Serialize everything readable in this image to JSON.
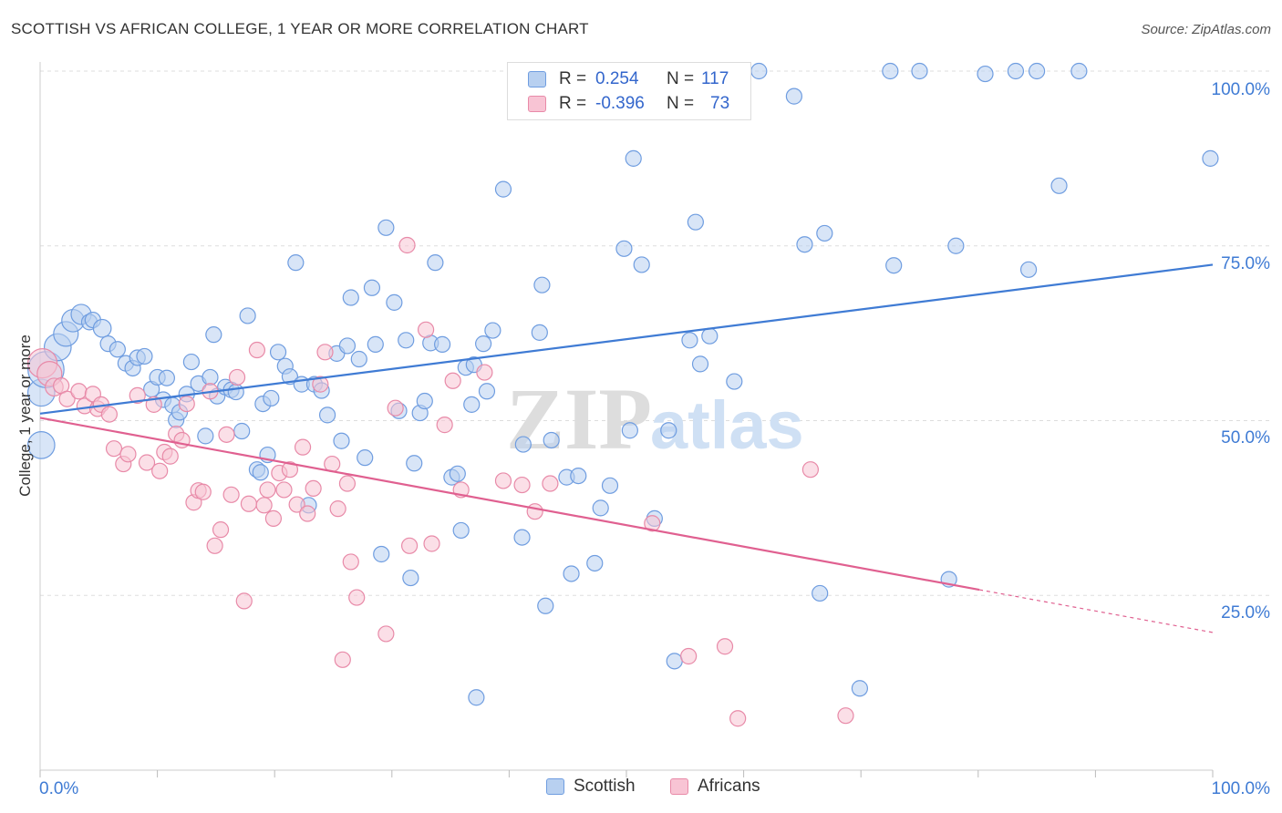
{
  "title": "SCOTTISH VS AFRICAN COLLEGE, 1 YEAR OR MORE CORRELATION CHART",
  "source": "Source: ZipAtlas.com",
  "watermark": {
    "zip": "ZIP",
    "atlas": "atlas"
  },
  "legend": {
    "r_label": "R =",
    "n_label": "N =",
    "rows": [
      {
        "r": "0.254",
        "n": "117",
        "fill": "#b8d0f0",
        "stroke": "#6f9de0"
      },
      {
        "r": "-0.396",
        "n": "73",
        "fill": "#f8c4d4",
        "stroke": "#e88aa8"
      }
    ]
  },
  "bottom_legend": [
    {
      "label": "Scottish",
      "fill": "#b8d0f0",
      "stroke": "#6f9de0"
    },
    {
      "label": "Africans",
      "fill": "#f8c4d4",
      "stroke": "#e88aa8"
    }
  ],
  "chart_data": {
    "type": "scatter",
    "title": "SCOTTISH VS AFRICAN COLLEGE, 1 YEAR OR MORE CORRELATION CHART",
    "xlabel": "",
    "ylabel": "College, 1 year or more",
    "xlim": [
      0,
      100
    ],
    "ylim": [
      0,
      100
    ],
    "x_tick_labels": [
      "0.0%",
      "100.0%"
    ],
    "y_tick_labels": [
      "25.0%",
      "50.0%",
      "75.0%",
      "100.0%"
    ],
    "y_ticks": [
      25,
      50,
      75,
      100
    ],
    "grid": true,
    "series": [
      {
        "name": "Scottish",
        "color": "#3f7bd4",
        "fill": "#b8d0f0",
        "r": 0.254,
        "n": 117,
        "trend": {
          "x": [
            0,
            100
          ],
          "y": [
            51.0,
            72.3
          ],
          "dashed_from": null
        },
        "points": [
          [
            0.1,
            54,
            22
          ],
          [
            0.1,
            46.5,
            22
          ],
          [
            0.5,
            57.3,
            30
          ],
          [
            1.5,
            60.5,
            22
          ],
          [
            2.2,
            62.4,
            20
          ],
          [
            2.8,
            64.3,
            18
          ],
          [
            3.5,
            65.2,
            16
          ],
          [
            4.2,
            64.1,
            12
          ],
          [
            4.5,
            64.4,
            12
          ],
          [
            5.3,
            63.2,
            14
          ],
          [
            5.8,
            61,
            12
          ],
          [
            6.6,
            60.2,
            12
          ],
          [
            7.3,
            58.2,
            12
          ],
          [
            7.9,
            57.5,
            12
          ],
          [
            8.3,
            59,
            12
          ],
          [
            8.9,
            59.2,
            12
          ],
          [
            9.5,
            54.5,
            12
          ],
          [
            10,
            56.2,
            12
          ],
          [
            10.5,
            53,
            12
          ],
          [
            10.8,
            56.1,
            12
          ],
          [
            11.3,
            52.2,
            12
          ],
          [
            11.6,
            50.1,
            12
          ],
          [
            11.9,
            51.2,
            12
          ],
          [
            12.5,
            53.8,
            12
          ],
          [
            12.9,
            58.4,
            12
          ],
          [
            13.5,
            55.3,
            12
          ],
          [
            14.1,
            47.8,
            12
          ],
          [
            14.5,
            56.2,
            12
          ],
          [
            14.8,
            62.3,
            12
          ],
          [
            15.1,
            53.5,
            12
          ],
          [
            15.8,
            54.8,
            12
          ],
          [
            16.3,
            54.4,
            12
          ],
          [
            16.7,
            54.1,
            12
          ],
          [
            17.2,
            48.5,
            12
          ],
          [
            17.7,
            65,
            12
          ],
          [
            18.5,
            43,
            12
          ],
          [
            18.8,
            42.6,
            12
          ],
          [
            19,
            52.4,
            12
          ],
          [
            19.4,
            45.1,
            12
          ],
          [
            19.7,
            53.2,
            12
          ],
          [
            20.3,
            59.8,
            12
          ],
          [
            20.9,
            57.8,
            12
          ],
          [
            21.3,
            56.3,
            12
          ],
          [
            21.8,
            72.6,
            12
          ],
          [
            22.3,
            55.2,
            12
          ],
          [
            22.9,
            37.9,
            12
          ],
          [
            23.4,
            55.2,
            12
          ],
          [
            24,
            54.3,
            12
          ],
          [
            24.5,
            50.8,
            12
          ],
          [
            25.3,
            59.6,
            12
          ],
          [
            25.7,
            47.1,
            12
          ],
          [
            26.2,
            60.7,
            12
          ],
          [
            26.5,
            67.6,
            12
          ],
          [
            27.2,
            58.8,
            12
          ],
          [
            27.7,
            44.7,
            12
          ],
          [
            28.3,
            69,
            12
          ],
          [
            28.6,
            60.9,
            12
          ],
          [
            29.1,
            30.9,
            12
          ],
          [
            29.5,
            77.6,
            12
          ],
          [
            30.2,
            66.9,
            12
          ],
          [
            30.6,
            51.4,
            12
          ],
          [
            31.2,
            61.5,
            12
          ],
          [
            31.6,
            27.5,
            12
          ],
          [
            31.9,
            43.9,
            12
          ],
          [
            32.4,
            51.1,
            12
          ],
          [
            32.8,
            52.8,
            12
          ],
          [
            33.3,
            61.1,
            12
          ],
          [
            33.7,
            72.6,
            12
          ],
          [
            34.3,
            60.9,
            12
          ],
          [
            35.1,
            41.9,
            12
          ],
          [
            35.6,
            42.4,
            12
          ],
          [
            35.9,
            34.3,
            12
          ],
          [
            36.3,
            57.6,
            12
          ],
          [
            36.8,
            52.3,
            12
          ],
          [
            37.2,
            10.4,
            12
          ],
          [
            37.8,
            61,
            12
          ],
          [
            38.1,
            54.2,
            12
          ],
          [
            38.6,
            62.9,
            12
          ],
          [
            39.5,
            83.1,
            12
          ],
          [
            41.1,
            33.3,
            12
          ],
          [
            41.2,
            46.6,
            12
          ],
          [
            41.9,
            94.5,
            12
          ],
          [
            42.6,
            62.6,
            12
          ],
          [
            42.8,
            69.4,
            12
          ],
          [
            43.1,
            23.5,
            12
          ],
          [
            43.6,
            47.2,
            12
          ],
          [
            44.9,
            41.9,
            12
          ],
          [
            45.3,
            28.1,
            12
          ],
          [
            45.9,
            42.1,
            12
          ],
          [
            47.3,
            29.6,
            12
          ],
          [
            47.8,
            37.5,
            12
          ],
          [
            48.1,
            96.5,
            12
          ],
          [
            48.6,
            40.7,
            12
          ],
          [
            49.8,
            74.6,
            12
          ],
          [
            50.3,
            48.6,
            12
          ],
          [
            50.6,
            87.5,
            12
          ],
          [
            51.3,
            72.3,
            12
          ],
          [
            51.6,
            98.6,
            12
          ],
          [
            52.4,
            36,
            12
          ],
          [
            53.6,
            48.6,
            12
          ],
          [
            54.1,
            15.6,
            12
          ],
          [
            55.4,
            61.5,
            12
          ],
          [
            56.3,
            58.1,
            12
          ],
          [
            57.1,
            62.1,
            12
          ],
          [
            58.8,
            95.3,
            12
          ],
          [
            59.2,
            55.6,
            12
          ],
          [
            61.3,
            100,
            12
          ],
          [
            64.3,
            96.4,
            12
          ],
          [
            65.2,
            75.2,
            12
          ],
          [
            66.5,
            25.3,
            12
          ],
          [
            66.9,
            76.8,
            12
          ],
          [
            69.9,
            11.7,
            12
          ],
          [
            72.5,
            100,
            12
          ],
          [
            72.8,
            72.2,
            12
          ],
          [
            75,
            100,
            12
          ],
          [
            77.5,
            27.3,
            12
          ],
          [
            80.6,
            99.6,
            12
          ],
          [
            83.2,
            100,
            12
          ],
          [
            84.3,
            71.6,
            12
          ],
          [
            85,
            100,
            12
          ],
          [
            86.9,
            83.6,
            12
          ],
          [
            88.6,
            100,
            12
          ],
          [
            99.8,
            87.5,
            12
          ],
          [
            55.9,
            78.4,
            12
          ],
          [
            78.1,
            75,
            12
          ],
          [
            37,
            58,
            12
          ]
        ]
      },
      {
        "name": "Africans",
        "color": "#e06090",
        "fill": "#f8c4d4",
        "r": -0.396,
        "n": 73,
        "trend": {
          "x": [
            0,
            100
          ],
          "y": [
            50.4,
            19.7
          ],
          "dashed_from": 80.1
        },
        "points": [
          [
            0.2,
            58.2,
            24
          ],
          [
            0.8,
            56.7,
            20
          ],
          [
            1.2,
            54.8,
            14
          ],
          [
            1.8,
            55,
            12
          ],
          [
            2.3,
            53.1,
            12
          ],
          [
            3.3,
            54.2,
            12
          ],
          [
            3.8,
            52.1,
            12
          ],
          [
            4.5,
            53.8,
            12
          ],
          [
            4.9,
            51.7,
            12
          ],
          [
            5.2,
            52.3,
            12
          ],
          [
            5.9,
            50.9,
            12
          ],
          [
            6.3,
            46,
            12
          ],
          [
            7.1,
            43.8,
            12
          ],
          [
            7.5,
            45.2,
            12
          ],
          [
            8.3,
            53.6,
            12
          ],
          [
            9.1,
            44,
            12
          ],
          [
            9.7,
            52.3,
            12
          ],
          [
            10.2,
            42.8,
            12
          ],
          [
            10.6,
            45.5,
            12
          ],
          [
            11.1,
            44.9,
            12
          ],
          [
            11.6,
            48.1,
            12
          ],
          [
            12.1,
            47.2,
            12
          ],
          [
            12.5,
            52.4,
            12
          ],
          [
            13.1,
            38.3,
            12
          ],
          [
            13.5,
            40,
            12
          ],
          [
            13.9,
            39.8,
            12
          ],
          [
            14.5,
            54.2,
            12
          ],
          [
            14.9,
            32.1,
            12
          ],
          [
            15.4,
            34.4,
            12
          ],
          [
            15.9,
            48,
            12
          ],
          [
            16.3,
            39.4,
            12
          ],
          [
            16.8,
            56.2,
            12
          ],
          [
            17.4,
            24.2,
            12
          ],
          [
            17.8,
            38.1,
            12
          ],
          [
            18.5,
            60.1,
            12
          ],
          [
            19.1,
            37.9,
            12
          ],
          [
            19.4,
            40.1,
            12
          ],
          [
            19.9,
            36,
            12
          ],
          [
            20.4,
            42.5,
            12
          ],
          [
            20.8,
            40.1,
            12
          ],
          [
            21.3,
            43,
            12
          ],
          [
            21.9,
            38,
            12
          ],
          [
            22.4,
            46.2,
            12
          ],
          [
            22.8,
            36.7,
            12
          ],
          [
            23.3,
            40.3,
            12
          ],
          [
            23.9,
            55.2,
            12
          ],
          [
            24.3,
            59.8,
            12
          ],
          [
            24.9,
            43.8,
            12
          ],
          [
            25.4,
            37.4,
            12
          ],
          [
            25.8,
            15.8,
            12
          ],
          [
            26.2,
            41,
            12
          ],
          [
            26.5,
            29.8,
            12
          ],
          [
            27,
            24.7,
            12
          ],
          [
            29.5,
            19.5,
            12
          ],
          [
            30.3,
            51.8,
            12
          ],
          [
            31.3,
            75.1,
            12
          ],
          [
            31.5,
            32.1,
            12
          ],
          [
            32.9,
            63,
            12
          ],
          [
            33.4,
            32.4,
            12
          ],
          [
            34.5,
            49.4,
            12
          ],
          [
            35.2,
            55.7,
            12
          ],
          [
            35.9,
            40.1,
            12
          ],
          [
            37.9,
            56.9,
            12
          ],
          [
            39.5,
            41.4,
            12
          ],
          [
            41.1,
            40.8,
            12
          ],
          [
            42.2,
            37,
            12
          ],
          [
            43.5,
            41,
            12
          ],
          [
            52.2,
            35.3,
            12
          ],
          [
            55.3,
            16.3,
            12
          ],
          [
            58.4,
            17.7,
            12
          ],
          [
            59.5,
            7.4,
            12
          ],
          [
            65.7,
            43,
            12
          ],
          [
            68.7,
            7.8,
            12
          ]
        ]
      }
    ]
  }
}
